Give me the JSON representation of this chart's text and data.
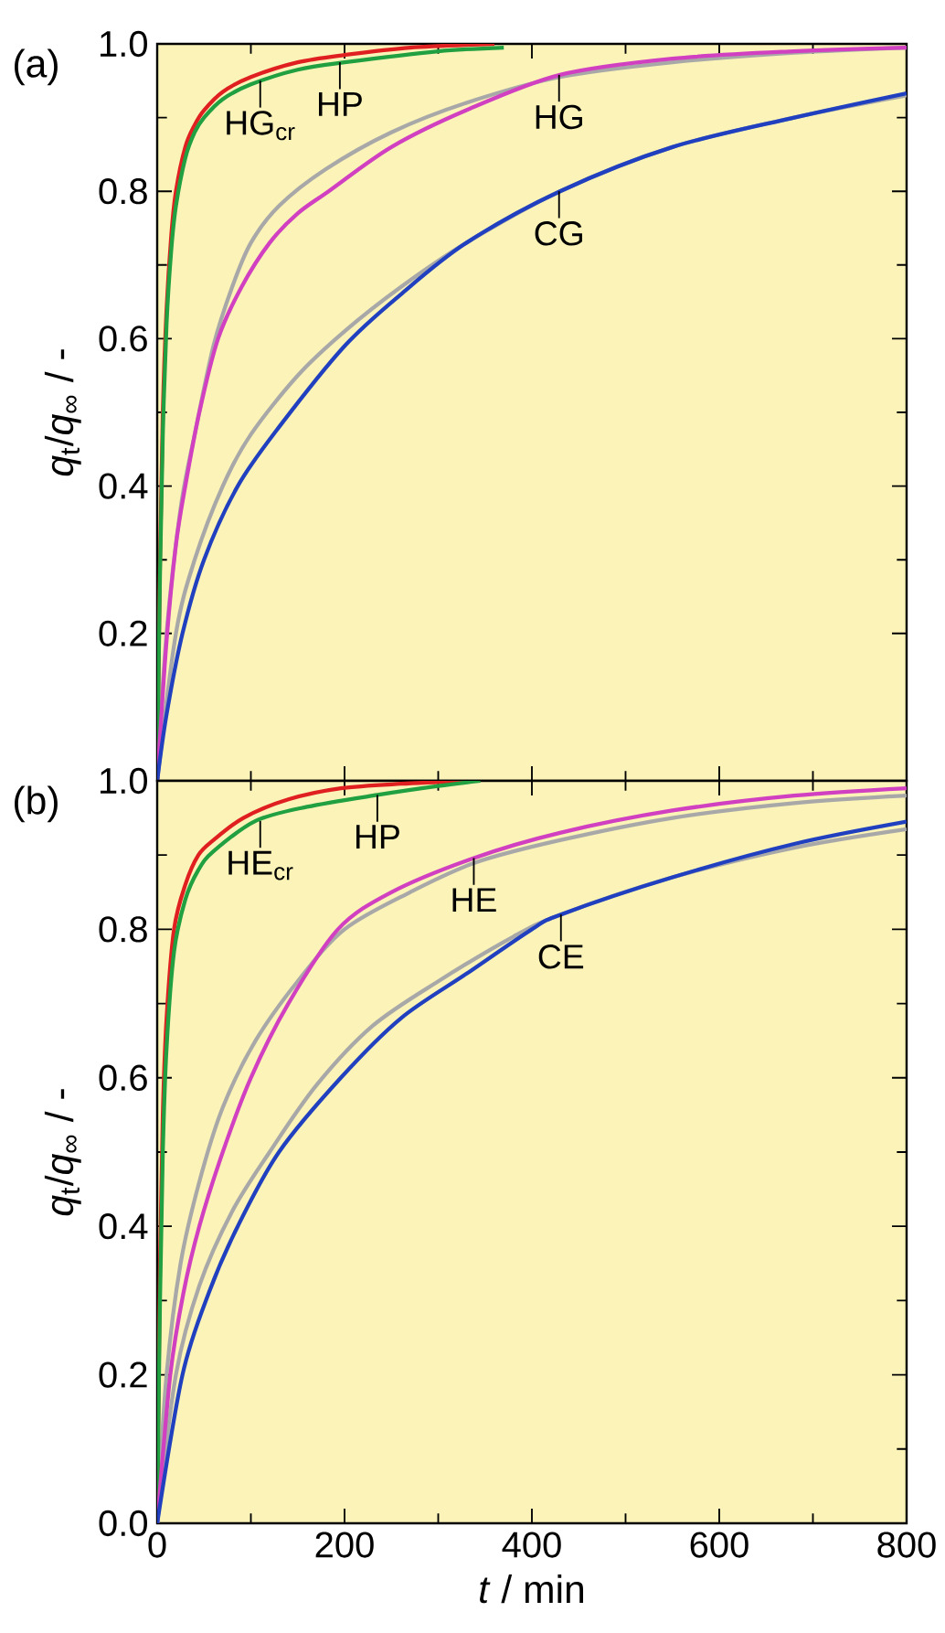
{
  "chart_data": [
    {
      "type": "line",
      "title": "(a)",
      "ylabel": "*q*$_{t}$/*q*$_{∞}$ / -",
      "xlim": [
        0,
        800
      ],
      "ylim": [
        0,
        1
      ],
      "xticks": [
        0,
        200,
        400,
        600,
        800
      ],
      "yticks": [
        {
          "value": 0.2,
          "label": "0.2"
        },
        {
          "value": 0.4,
          "label": "0.4"
        },
        {
          "value": 0.6,
          "label": "0.6"
        },
        {
          "value": 0.8,
          "label": "0.8"
        },
        {
          "value": 1,
          "label": "1.0"
        }
      ],
      "tick_labels": "y",
      "series": [
        {
          "color": "#a8a8a8",
          "x": [
            0,
            10,
            25,
            40,
            60,
            80,
            100,
            130,
            180,
            250,
            330,
            430,
            550,
            680,
            800
          ],
          "values": [
            0,
            0.2,
            0.37,
            0.47,
            0.59,
            0.67,
            0.73,
            0.78,
            0.83,
            0.88,
            0.92,
            0.955,
            0.975,
            0.988,
            0.995
          ]
        },
        {
          "color": "#a8a8a8",
          "x": [
            0,
            20,
            40,
            70,
            100,
            150,
            200,
            260,
            330,
            430,
            550,
            680,
            800
          ],
          "values": [
            0,
            0.2,
            0.3,
            0.4,
            0.47,
            0.55,
            0.61,
            0.67,
            0.73,
            0.8,
            0.86,
            0.9,
            0.93
          ]
        },
        {
          "color": "#e02020",
          "x": [
            0,
            3,
            6,
            10,
            15,
            20,
            30,
            40,
            50,
            70,
            100,
            150,
            200,
            270,
            360
          ],
          "values": [
            0,
            0.3,
            0.5,
            0.64,
            0.74,
            0.8,
            0.86,
            0.89,
            0.91,
            0.935,
            0.955,
            0.975,
            0.985,
            0.995,
            1.0
          ]
        },
        {
          "color": "#20a040",
          "x": [
            0,
            3,
            6,
            10,
            15,
            20,
            30,
            40,
            50,
            70,
            100,
            150,
            200,
            300,
            370
          ],
          "values": [
            0,
            0.28,
            0.47,
            0.62,
            0.72,
            0.78,
            0.845,
            0.88,
            0.9,
            0.925,
            0.945,
            0.965,
            0.975,
            0.99,
            0.995
          ]
        },
        {
          "color": "#d040c0",
          "x": [
            0,
            10,
            20,
            30,
            45,
            65,
            90,
            120,
            150,
            183,
            250,
            330,
            430,
            550,
            680,
            800
          ],
          "values": [
            0,
            0.19,
            0.32,
            0.4,
            0.5,
            0.6,
            0.67,
            0.73,
            0.77,
            0.8,
            0.86,
            0.91,
            0.958,
            0.98,
            0.99,
            0.995
          ]
        },
        {
          "color": "#2040c0",
          "x": [
            0,
            10,
            27,
            50,
            86,
            130,
            200,
            260,
            330,
            430,
            550,
            680,
            800
          ],
          "values": [
            0,
            0.09,
            0.2,
            0.3,
            0.4,
            0.48,
            0.59,
            0.66,
            0.73,
            0.8,
            0.86,
            0.9,
            0.933
          ]
        }
      ],
      "annotations": [
        {
          "text": "HG$_{cr}$",
          "x": 110,
          "y": 0.95
        },
        {
          "text": "HP",
          "x": 195,
          "y": 0.975
        },
        {
          "text": "HG",
          "x": 429,
          "y": 0.958
        },
        {
          "text": "CG",
          "x": 429,
          "y": 0.8
        }
      ]
    },
    {
      "type": "line",
      "title": "(b)",
      "xlabel": "*t* / min",
      "ylabel": "*q*$_{t}$/*q*$_{∞}$ / -",
      "xlim": [
        0,
        800
      ],
      "ylim": [
        0,
        1
      ],
      "xticks": [
        0,
        200,
        400,
        600,
        800
      ],
      "yticks": [
        {
          "value": 0,
          "label": "0.0"
        },
        {
          "value": 0.2,
          "label": "0.2"
        },
        {
          "value": 0.4,
          "label": "0.4"
        },
        {
          "value": 0.6,
          "label": "0.6"
        },
        {
          "value": 0.8,
          "label": "0.8"
        },
        {
          "value": 1,
          "label": "1.0"
        }
      ],
      "series": [
        {
          "color": "#a8a8a8",
          "x": [
            0,
            10,
            25,
            45,
            70,
            105,
            150,
            200,
            270,
            340,
            430,
            550,
            680,
            800
          ],
          "values": [
            0,
            0.2,
            0.35,
            0.46,
            0.56,
            0.65,
            0.73,
            0.8,
            0.85,
            0.89,
            0.92,
            0.95,
            0.97,
            0.98
          ]
        },
        {
          "color": "#a8a8a8",
          "x": [
            0,
            20,
            45,
            80,
            120,
            170,
            230,
            300,
            380,
            431,
            550,
            680,
            800
          ],
          "values": [
            0,
            0.2,
            0.32,
            0.42,
            0.5,
            0.59,
            0.67,
            0.73,
            0.79,
            0.82,
            0.87,
            0.91,
            0.935
          ]
        },
        {
          "color": "#e02020",
          "x": [
            0,
            3,
            6,
            10,
            18,
            30,
            44,
            60,
            92,
            140,
            196,
            260,
            339
          ],
          "values": [
            0,
            0.35,
            0.55,
            0.68,
            0.8,
            0.86,
            0.9,
            0.92,
            0.95,
            0.975,
            0.99,
            0.996,
            1.0
          ]
        },
        {
          "color": "#20a040",
          "x": [
            0,
            3,
            6,
            10,
            18,
            30,
            44,
            60,
            105,
            160,
            235,
            300,
            345
          ],
          "values": [
            0,
            0.3,
            0.5,
            0.64,
            0.77,
            0.84,
            0.88,
            0.905,
            0.946,
            0.965,
            0.981,
            0.993,
            1.0
          ]
        },
        {
          "color": "#d040c0",
          "x": [
            0,
            14,
            28,
            45,
            70,
            100,
            140,
            193,
            250,
            338,
            430,
            550,
            680,
            800
          ],
          "values": [
            0,
            0.2,
            0.31,
            0.4,
            0.5,
            0.6,
            0.7,
            0.8,
            0.85,
            0.896,
            0.93,
            0.96,
            0.98,
            0.99
          ]
        },
        {
          "color": "#2040c0",
          "x": [
            0,
            27,
            55,
            86,
            130,
            196,
            260,
            330,
            400,
            431,
            550,
            680,
            800
          ],
          "values": [
            0,
            0.2,
            0.31,
            0.4,
            0.5,
            0.6,
            0.68,
            0.74,
            0.8,
            0.82,
            0.87,
            0.915,
            0.945
          ]
        }
      ],
      "annotations": [
        {
          "text": "HE$_{cr}$",
          "x": 110,
          "y": 0.946
        },
        {
          "text": "HP",
          "x": 235,
          "y": 0.981
        },
        {
          "text": "HE",
          "x": 338,
          "y": 0.896
        },
        {
          "text": "CE",
          "x": 431,
          "y": 0.82
        }
      ]
    }
  ]
}
